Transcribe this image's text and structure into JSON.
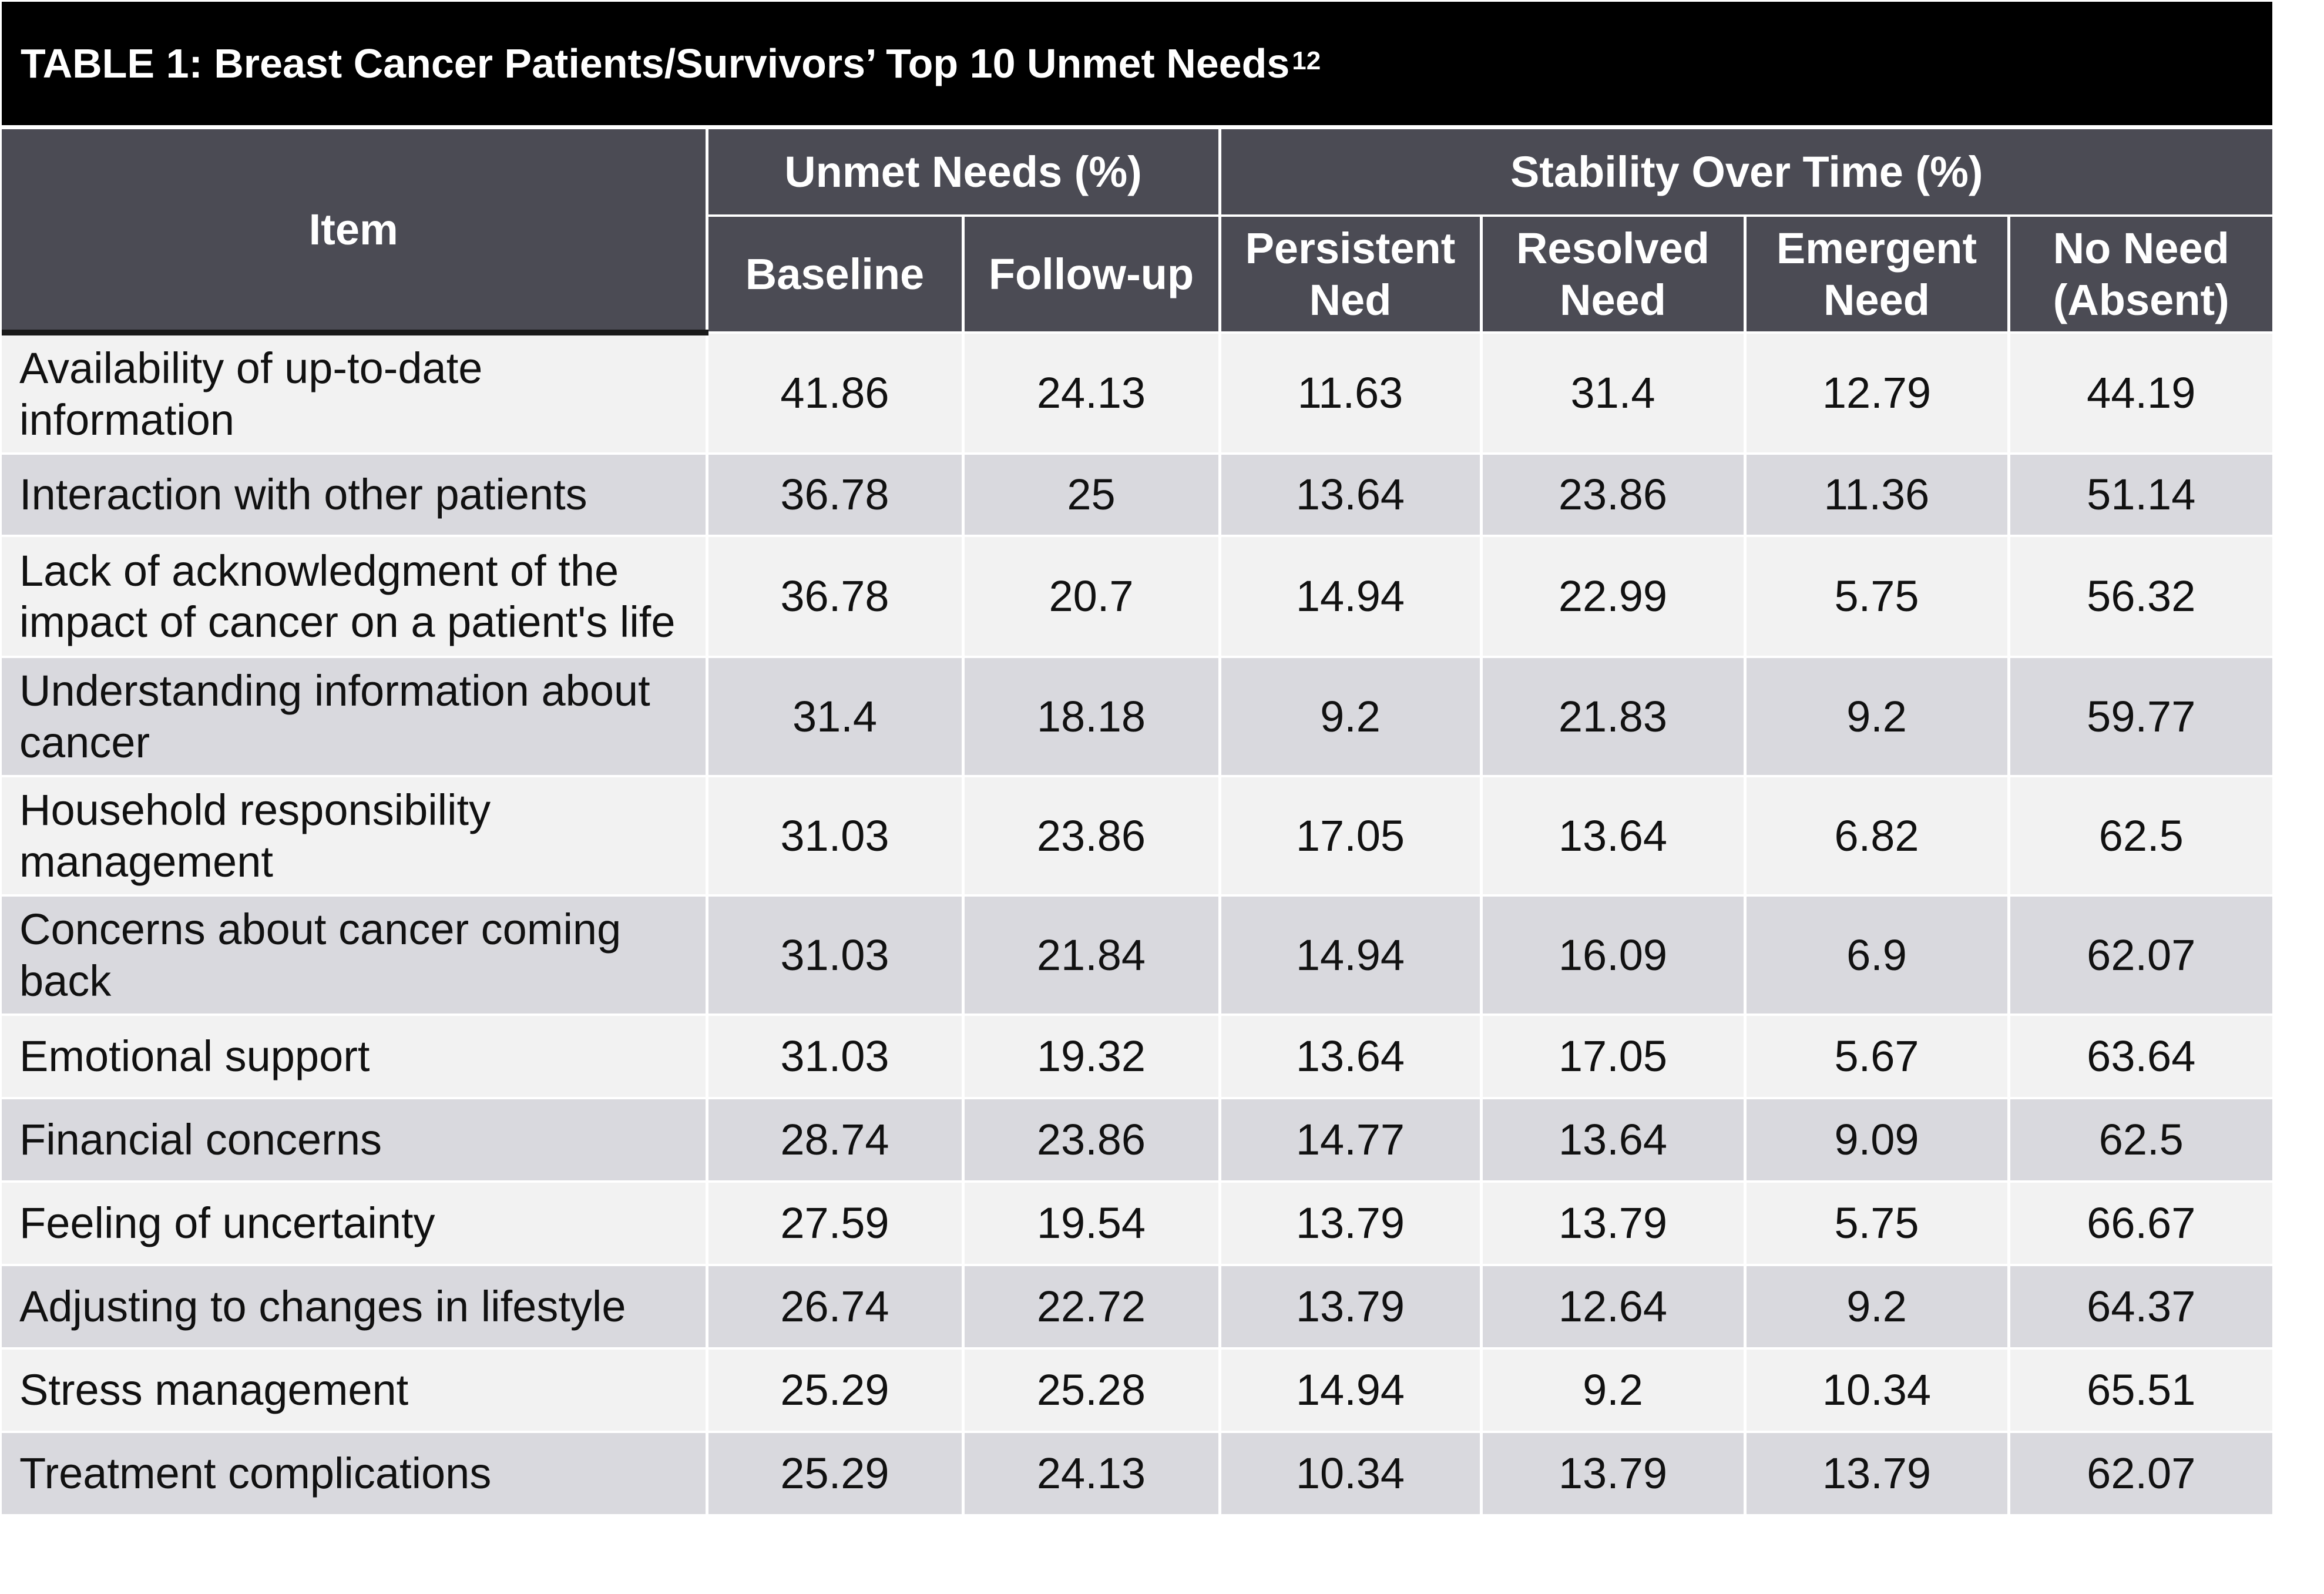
{
  "table": {
    "title": "TABLE 1: Breast Cancer Patients/Survivors’ Top 10 Unmet Needs",
    "title_superscript": "12",
    "header": {
      "item": "Item",
      "group_unmet": "Unmet Needs (%)",
      "group_stability": "Stability Over Time (%)",
      "baseline": "Baseline",
      "followup": "Follow-up",
      "persistent_l1": "Persistent",
      "persistent_l2": "Ned",
      "resolved_l1": "Resolved",
      "resolved_l2": "Need",
      "emergent_l1": "Emergent",
      "emergent_l2": "Need",
      "noneed_l1": "No Need",
      "noneed_l2": "(Absent)"
    },
    "rows": [
      {
        "item": "Availability of up-to-date information",
        "baseline": "41.86",
        "followup": "24.13",
        "persistent": "11.63",
        "resolved": "31.4",
        "emergent": "12.79",
        "absent": "44.19"
      },
      {
        "item": "Interaction with other patients",
        "baseline": "36.78",
        "followup": "25",
        "persistent": "13.64",
        "resolved": "23.86",
        "emergent": "11.36",
        "absent": "51.14"
      },
      {
        "item": "Lack of acknowledgment of the impact of cancer on a patient's life",
        "baseline": "36.78",
        "followup": "20.7",
        "persistent": "14.94",
        "resolved": "22.99",
        "emergent": "5.75",
        "absent": "56.32"
      },
      {
        "item": "Understanding information about cancer",
        "baseline": "31.4",
        "followup": "18.18",
        "persistent": "9.2",
        "resolved": "21.83",
        "emergent": "9.2",
        "absent": "59.77"
      },
      {
        "item": "Household responsibility management",
        "baseline": "31.03",
        "followup": "23.86",
        "persistent": "17.05",
        "resolved": "13.64",
        "emergent": "6.82",
        "absent": "62.5"
      },
      {
        "item": "Concerns about cancer coming back",
        "baseline": "31.03",
        "followup": "21.84",
        "persistent": "14.94",
        "resolved": "16.09",
        "emergent": "6.9",
        "absent": "62.07"
      },
      {
        "item": "Emotional support",
        "baseline": "31.03",
        "followup": "19.32",
        "persistent": "13.64",
        "resolved": "17.05",
        "emergent": "5.67",
        "absent": "63.64"
      },
      {
        "item": "Financial concerns",
        "baseline": "28.74",
        "followup": "23.86",
        "persistent": "14.77",
        "resolved": "13.64",
        "emergent": "9.09",
        "absent": "62.5"
      },
      {
        "item": "Feeling of uncertainty",
        "baseline": "27.59",
        "followup": "19.54",
        "persistent": "13.79",
        "resolved": "13.79",
        "emergent": "5.75",
        "absent": "66.67"
      },
      {
        "item": "Adjusting to changes in lifestyle",
        "baseline": "26.74",
        "followup": "22.72",
        "persistent": "13.79",
        "resolved": "12.64",
        "emergent": "9.2",
        "absent": "64.37"
      },
      {
        "item": "Stress management",
        "baseline": "25.29",
        "followup": "25.28",
        "persistent": "14.94",
        "resolved": "9.2",
        "emergent": "10.34",
        "absent": "65.51"
      },
      {
        "item": "Treatment complications",
        "baseline": "25.29",
        "followup": "24.13",
        "persistent": "10.34",
        "resolved": "13.79",
        "emergent": "13.79",
        "absent": "62.07"
      }
    ]
  }
}
